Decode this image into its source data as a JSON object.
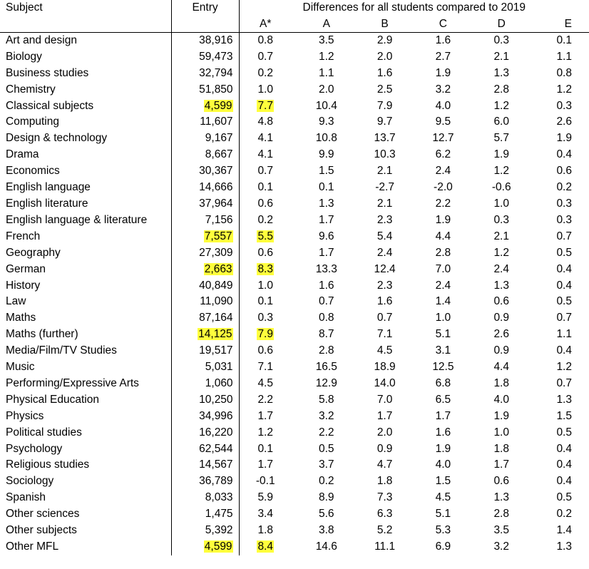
{
  "headers": {
    "subject": "Subject",
    "entry": "Entry",
    "group": "Differences for all students compared to 2019",
    "grades": [
      "A*",
      "A",
      "B",
      "C",
      "D",
      "E"
    ]
  },
  "highlight_color": "#ffff3c",
  "rows": [
    {
      "subject": "Art and design",
      "entry": "38,916",
      "astar": "0.8",
      "a": "3.5",
      "b": "2.9",
      "c": "1.6",
      "d": "0.3",
      "e": "0.1",
      "hl": false
    },
    {
      "subject": "Biology",
      "entry": "59,473",
      "astar": "0.7",
      "a": "1.2",
      "b": "2.0",
      "c": "2.7",
      "d": "2.1",
      "e": "1.1",
      "hl": false
    },
    {
      "subject": "Business studies",
      "entry": "32,794",
      "astar": "0.2",
      "a": "1.1",
      "b": "1.6",
      "c": "1.9",
      "d": "1.3",
      "e": "0.8",
      "hl": false
    },
    {
      "subject": "Chemistry",
      "entry": "51,850",
      "astar": "1.0",
      "a": "2.0",
      "b": "2.5",
      "c": "3.2",
      "d": "2.8",
      "e": "1.2",
      "hl": false
    },
    {
      "subject": "Classical subjects",
      "entry": "4,599",
      "astar": "7.7",
      "a": "10.4",
      "b": "7.9",
      "c": "4.0",
      "d": "1.2",
      "e": "0.3",
      "hl": true
    },
    {
      "subject": "Computing",
      "entry": "11,607",
      "astar": "4.8",
      "a": "9.3",
      "b": "9.7",
      "c": "9.5",
      "d": "6.0",
      "e": "2.6",
      "hl": false
    },
    {
      "subject": "Design & technology",
      "entry": "9,167",
      "astar": "4.1",
      "a": "10.8",
      "b": "13.7",
      "c": "12.7",
      "d": "5.7",
      "e": "1.9",
      "hl": false
    },
    {
      "subject": "Drama",
      "entry": "8,667",
      "astar": "4.1",
      "a": "9.9",
      "b": "10.3",
      "c": "6.2",
      "d": "1.9",
      "e": "0.4",
      "hl": false
    },
    {
      "subject": "Economics",
      "entry": "30,367",
      "astar": "0.7",
      "a": "1.5",
      "b": "2.1",
      "c": "2.4",
      "d": "1.2",
      "e": "0.6",
      "hl": false
    },
    {
      "subject": "English language",
      "entry": "14,666",
      "astar": "0.1",
      "a": "0.1",
      "b": "-2.7",
      "c": "-2.0",
      "d": "-0.6",
      "e": "0.2",
      "hl": false
    },
    {
      "subject": "English literature",
      "entry": "37,964",
      "astar": "0.6",
      "a": "1.3",
      "b": "2.1",
      "c": "2.2",
      "d": "1.0",
      "e": "0.3",
      "hl": false
    },
    {
      "subject": "English language & literature",
      "entry": "7,156",
      "astar": "0.2",
      "a": "1.7",
      "b": "2.3",
      "c": "1.9",
      "d": "0.3",
      "e": "0.3",
      "hl": false
    },
    {
      "subject": "French",
      "entry": "7,557",
      "astar": "5.5",
      "a": "9.6",
      "b": "5.4",
      "c": "4.4",
      "d": "2.1",
      "e": "0.7",
      "hl": true
    },
    {
      "subject": "Geography",
      "entry": "27,309",
      "astar": "0.6",
      "a": "1.7",
      "b": "2.4",
      "c": "2.8",
      "d": "1.2",
      "e": "0.5",
      "hl": false
    },
    {
      "subject": "German",
      "entry": "2,663",
      "astar": "8.3",
      "a": "13.3",
      "b": "12.4",
      "c": "7.0",
      "d": "2.4",
      "e": "0.4",
      "hl": true
    },
    {
      "subject": "History",
      "entry": "40,849",
      "astar": "1.0",
      "a": "1.6",
      "b": "2.3",
      "c": "2.4",
      "d": "1.3",
      "e": "0.4",
      "hl": false
    },
    {
      "subject": "Law",
      "entry": "11,090",
      "astar": "0.1",
      "a": "0.7",
      "b": "1.6",
      "c": "1.4",
      "d": "0.6",
      "e": "0.5",
      "hl": false
    },
    {
      "subject": "Maths",
      "entry": "87,164",
      "astar": "0.3",
      "a": "0.8",
      "b": "0.7",
      "c": "1.0",
      "d": "0.9",
      "e": "0.7",
      "hl": false
    },
    {
      "subject": "Maths (further)",
      "entry": "14,125",
      "astar": "7.9",
      "a": "8.7",
      "b": "7.1",
      "c": "5.1",
      "d": "2.6",
      "e": "1.1",
      "hl": true
    },
    {
      "subject": "Media/Film/TV Studies",
      "entry": "19,517",
      "astar": "0.6",
      "a": "2.8",
      "b": "4.5",
      "c": "3.1",
      "d": "0.9",
      "e": "0.4",
      "hl": false
    },
    {
      "subject": "Music",
      "entry": "5,031",
      "astar": "7.1",
      "a": "16.5",
      "b": "18.9",
      "c": "12.5",
      "d": "4.4",
      "e": "1.2",
      "hl": false
    },
    {
      "subject": "Performing/Expressive Arts",
      "entry": "1,060",
      "astar": "4.5",
      "a": "12.9",
      "b": "14.0",
      "c": "6.8",
      "d": "1.8",
      "e": "0.7",
      "hl": false
    },
    {
      "subject": "Physical Education",
      "entry": "10,250",
      "astar": "2.2",
      "a": "5.8",
      "b": "7.0",
      "c": "6.5",
      "d": "4.0",
      "e": "1.3",
      "hl": false
    },
    {
      "subject": "Physics",
      "entry": "34,996",
      "astar": "1.7",
      "a": "3.2",
      "b": "1.7",
      "c": "1.7",
      "d": "1.9",
      "e": "1.5",
      "hl": false
    },
    {
      "subject": "Political studies",
      "entry": "16,220",
      "astar": "1.2",
      "a": "2.2",
      "b": "2.0",
      "c": "1.6",
      "d": "1.0",
      "e": "0.5",
      "hl": false
    },
    {
      "subject": "Psychology",
      "entry": "62,544",
      "astar": "0.1",
      "a": "0.5",
      "b": "0.9",
      "c": "1.9",
      "d": "1.8",
      "e": "0.4",
      "hl": false
    },
    {
      "subject": "Religious studies",
      "entry": "14,567",
      "astar": "1.7",
      "a": "3.7",
      "b": "4.7",
      "c": "4.0",
      "d": "1.7",
      "e": "0.4",
      "hl": false
    },
    {
      "subject": "Sociology",
      "entry": "36,789",
      "astar": "-0.1",
      "a": "0.2",
      "b": "1.8",
      "c": "1.5",
      "d": "0.6",
      "e": "0.4",
      "hl": false
    },
    {
      "subject": "Spanish",
      "entry": "8,033",
      "astar": "5.9",
      "a": "8.9",
      "b": "7.3",
      "c": "4.5",
      "d": "1.3",
      "e": "0.5",
      "hl": false
    },
    {
      "subject": "Other sciences",
      "entry": "1,475",
      "astar": "3.4",
      "a": "5.6",
      "b": "6.3",
      "c": "5.1",
      "d": "2.8",
      "e": "0.2",
      "hl": false
    },
    {
      "subject": "Other subjects",
      "entry": "5,392",
      "astar": "1.8",
      "a": "3.8",
      "b": "5.2",
      "c": "5.3",
      "d": "3.5",
      "e": "1.4",
      "hl": false
    },
    {
      "subject": "Other MFL",
      "entry": "4,599",
      "astar": "8.4",
      "a": "14.6",
      "b": "11.1",
      "c": "6.9",
      "d": "3.2",
      "e": "1.3",
      "hl": true
    }
  ]
}
